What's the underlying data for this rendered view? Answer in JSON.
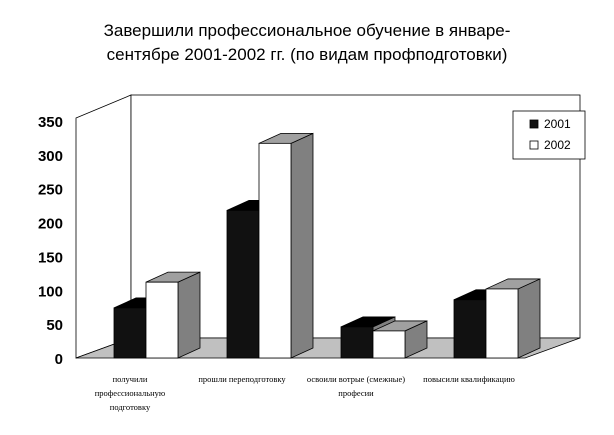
{
  "chart_data": {
    "type": "bar",
    "title": "Завершили профессиональное обучение в январе-сентябре 2001-2002 гг. (по видам профподготовки)",
    "title_lines": [
      "Завершили профессиональное обучение в январе-",
      "сентябре 2001-2002 гг. (по видам профподготовки)"
    ],
    "categories": [
      "получили профессиональную подготовку",
      "прошли переподготовку",
      "освоили вотрые (смежные) професии",
      "повысили квалификацию"
    ],
    "category_lines": [
      [
        "получили",
        "профессиональную",
        "подготовку"
      ],
      [
        "прошли переподготовку"
      ],
      [
        "освоили вотрые (смежные)",
        "професии"
      ],
      [
        "повысили квалификацию"
      ]
    ],
    "series": [
      {
        "name": "2001",
        "values": [
          74,
          218,
          46,
          86
        ],
        "color": "#111111"
      },
      {
        "name": "2002",
        "values": [
          112,
          317,
          40,
          102
        ],
        "color": "#ffffff"
      }
    ],
    "ylim": [
      0,
      350
    ],
    "yticks": [
      "0",
      "50",
      "100",
      "150",
      "200",
      "250",
      "300",
      "350"
    ],
    "xlabel": "",
    "ylabel": "",
    "legend_position": "top-right",
    "grid": false,
    "three_d": true,
    "floor_color": "#c0c0c0",
    "side_color": "#808080",
    "top_color": "#a0a0a0"
  }
}
